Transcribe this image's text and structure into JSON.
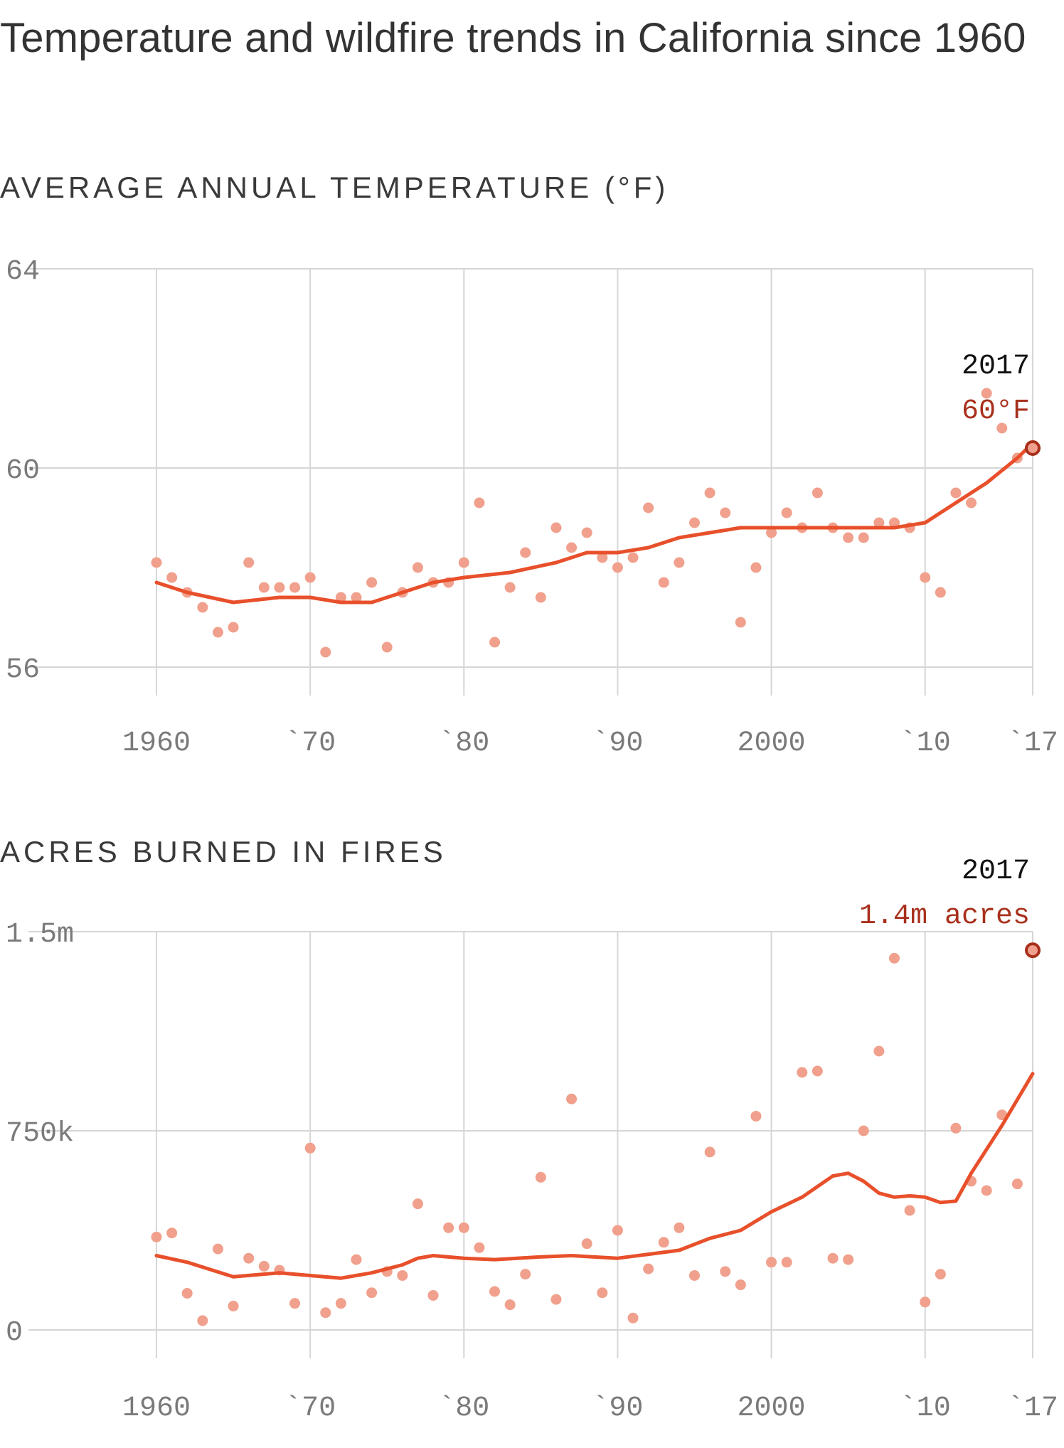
{
  "title": "Temperature and wildfire trends in California since 1960",
  "colors": {
    "dot": "#f0a08c",
    "trend": "#e8502b",
    "highlight": "#a8301c",
    "grid": "#d6d6d6"
  },
  "chart_data": [
    {
      "type": "scatter",
      "subtitle": "AVERAGE ANNUAL TEMPERATURE (°F)",
      "x_ticks": [
        {
          "value": 1960,
          "label": "1960"
        },
        {
          "value": 1970,
          "label": "`70"
        },
        {
          "value": 1980,
          "label": "`80"
        },
        {
          "value": 1990,
          "label": "`90"
        },
        {
          "value": 2000,
          "label": "2000"
        },
        {
          "value": 2010,
          "label": "`10"
        },
        {
          "value": 2017,
          "label": "`17"
        }
      ],
      "y_ticks": [
        {
          "value": 56,
          "label": "56"
        },
        {
          "value": 60,
          "label": "60"
        },
        {
          "value": 64,
          "label": "64"
        }
      ],
      "xlim": [
        1960,
        2017
      ],
      "ylim": [
        56,
        64
      ],
      "grid": true,
      "points": [
        [
          1960,
          58.1
        ],
        [
          1961,
          57.8
        ],
        [
          1962,
          57.5
        ],
        [
          1963,
          57.2
        ],
        [
          1964,
          56.7
        ],
        [
          1965,
          56.8
        ],
        [
          1966,
          58.1
        ],
        [
          1967,
          57.6
        ],
        [
          1968,
          57.6
        ],
        [
          1969,
          57.6
        ],
        [
          1970,
          57.8
        ],
        [
          1971,
          56.3
        ],
        [
          1972,
          57.4
        ],
        [
          1973,
          57.4
        ],
        [
          1974,
          57.7
        ],
        [
          1975,
          56.4
        ],
        [
          1976,
          57.5
        ],
        [
          1977,
          58.0
        ],
        [
          1978,
          57.7
        ],
        [
          1979,
          57.7
        ],
        [
          1980,
          58.1
        ],
        [
          1981,
          59.3
        ],
        [
          1982,
          56.5
        ],
        [
          1983,
          57.6
        ],
        [
          1984,
          58.3
        ],
        [
          1985,
          57.4
        ],
        [
          1986,
          58.8
        ],
        [
          1987,
          58.4
        ],
        [
          1988,
          58.7
        ],
        [
          1989,
          58.2
        ],
        [
          1990,
          58.0
        ],
        [
          1991,
          58.2
        ],
        [
          1992,
          59.2
        ],
        [
          1993,
          57.7
        ],
        [
          1994,
          58.1
        ],
        [
          1995,
          58.9
        ],
        [
          1996,
          59.5
        ],
        [
          1997,
          59.1
        ],
        [
          1998,
          56.9
        ],
        [
          1999,
          58.0
        ],
        [
          2000,
          58.7
        ],
        [
          2001,
          59.1
        ],
        [
          2002,
          58.8
        ],
        [
          2003,
          59.5
        ],
        [
          2004,
          58.8
        ],
        [
          2005,
          58.6
        ],
        [
          2006,
          58.6
        ],
        [
          2007,
          58.9
        ],
        [
          2008,
          58.9
        ],
        [
          2009,
          58.8
        ],
        [
          2010,
          57.8
        ],
        [
          2011,
          57.5
        ],
        [
          2012,
          59.5
        ],
        [
          2013,
          59.3
        ],
        [
          2014,
          61.5
        ],
        [
          2015,
          60.8
        ],
        [
          2016,
          60.2
        ],
        [
          2017,
          60.4
        ]
      ],
      "trend": [
        [
          1960,
          57.7
        ],
        [
          1962,
          57.5
        ],
        [
          1965,
          57.3
        ],
        [
          1968,
          57.4
        ],
        [
          1970,
          57.4
        ],
        [
          1972,
          57.3
        ],
        [
          1974,
          57.3
        ],
        [
          1976,
          57.5
        ],
        [
          1978,
          57.7
        ],
        [
          1980,
          57.8
        ],
        [
          1983,
          57.9
        ],
        [
          1986,
          58.1
        ],
        [
          1988,
          58.3
        ],
        [
          1990,
          58.3
        ],
        [
          1992,
          58.4
        ],
        [
          1994,
          58.6
        ],
        [
          1996,
          58.7
        ],
        [
          1998,
          58.8
        ],
        [
          2000,
          58.8
        ],
        [
          2002,
          58.8
        ],
        [
          2004,
          58.8
        ],
        [
          2006,
          58.8
        ],
        [
          2008,
          58.8
        ],
        [
          2010,
          58.9
        ],
        [
          2012,
          59.3
        ],
        [
          2014,
          59.7
        ],
        [
          2016,
          60.2
        ],
        [
          2017,
          60.5
        ]
      ],
      "highlight": {
        "x": 2017,
        "y": 60.4,
        "year_label": "2017",
        "value_label": "60°F"
      }
    },
    {
      "type": "scatter",
      "subtitle": "ACRES BURNED IN FIRES",
      "x_ticks": [
        {
          "value": 1960,
          "label": "1960"
        },
        {
          "value": 1970,
          "label": "`70"
        },
        {
          "value": 1980,
          "label": "`80"
        },
        {
          "value": 1990,
          "label": "`90"
        },
        {
          "value": 2000,
          "label": "2000"
        },
        {
          "value": 2010,
          "label": "`10"
        },
        {
          "value": 2017,
          "label": "`17"
        }
      ],
      "y_ticks": [
        {
          "value": 0,
          "label": "0"
        },
        {
          "value": 750000,
          "label": "750k"
        },
        {
          "value": 1500000,
          "label": "1.5m"
        }
      ],
      "xlim": [
        1960,
        2017
      ],
      "ylim": [
        0,
        1500000
      ],
      "grid": true,
      "points": [
        [
          1960,
          350000
        ],
        [
          1961,
          365000
        ],
        [
          1962,
          138000
        ],
        [
          1963,
          35000
        ],
        [
          1964,
          305000
        ],
        [
          1965,
          90000
        ],
        [
          1966,
          270000
        ],
        [
          1967,
          240000
        ],
        [
          1968,
          225000
        ],
        [
          1969,
          100000
        ],
        [
          1970,
          685000
        ],
        [
          1971,
          65000
        ],
        [
          1972,
          100000
        ],
        [
          1973,
          265000
        ],
        [
          1974,
          140000
        ],
        [
          1975,
          220000
        ],
        [
          1976,
          205000
        ],
        [
          1977,
          475000
        ],
        [
          1978,
          130000
        ],
        [
          1979,
          385000
        ],
        [
          1980,
          385000
        ],
        [
          1981,
          310000
        ],
        [
          1982,
          145000
        ],
        [
          1983,
          95000
        ],
        [
          1984,
          210000
        ],
        [
          1985,
          575000
        ],
        [
          1986,
          115000
        ],
        [
          1987,
          870000
        ],
        [
          1988,
          325000
        ],
        [
          1989,
          140000
        ],
        [
          1990,
          375000
        ],
        [
          1991,
          45000
        ],
        [
          1992,
          230000
        ],
        [
          1993,
          330000
        ],
        [
          1994,
          385000
        ],
        [
          1995,
          205000
        ],
        [
          1996,
          670000
        ],
        [
          1997,
          220000
        ],
        [
          1998,
          170000
        ],
        [
          1999,
          805000
        ],
        [
          2000,
          255000
        ],
        [
          2001,
          255000
        ],
        [
          2002,
          970000
        ],
        [
          2003,
          975000
        ],
        [
          2004,
          270000
        ],
        [
          2005,
          265000
        ],
        [
          2006,
          750000
        ],
        [
          2007,
          1050000
        ],
        [
          2008,
          1400000
        ],
        [
          2009,
          450000
        ],
        [
          2010,
          105000
        ],
        [
          2011,
          210000
        ],
        [
          2012,
          760000
        ],
        [
          2013,
          560000
        ],
        [
          2014,
          525000
        ],
        [
          2015,
          810000
        ],
        [
          2016,
          550000
        ],
        [
          2017,
          1430000
        ]
      ],
      "trend": [
        [
          1960,
          280000
        ],
        [
          1962,
          255000
        ],
        [
          1965,
          200000
        ],
        [
          1968,
          215000
        ],
        [
          1970,
          205000
        ],
        [
          1972,
          195000
        ],
        [
          1974,
          215000
        ],
        [
          1976,
          245000
        ],
        [
          1977,
          270000
        ],
        [
          1978,
          280000
        ],
        [
          1980,
          270000
        ],
        [
          1982,
          265000
        ],
        [
          1985,
          275000
        ],
        [
          1987,
          280000
        ],
        [
          1990,
          270000
        ],
        [
          1992,
          285000
        ],
        [
          1994,
          300000
        ],
        [
          1996,
          345000
        ],
        [
          1998,
          375000
        ],
        [
          2000,
          445000
        ],
        [
          2002,
          500000
        ],
        [
          2004,
          580000
        ],
        [
          2005,
          590000
        ],
        [
          2006,
          560000
        ],
        [
          2007,
          515000
        ],
        [
          2008,
          500000
        ],
        [
          2009,
          505000
        ],
        [
          2010,
          500000
        ],
        [
          2011,
          480000
        ],
        [
          2012,
          485000
        ],
        [
          2013,
          590000
        ],
        [
          2015,
          770000
        ],
        [
          2017,
          965000
        ]
      ],
      "highlight": {
        "x": 2017,
        "y": 1430000,
        "year_label": "2017",
        "value_label": "1.4m acres"
      }
    }
  ]
}
